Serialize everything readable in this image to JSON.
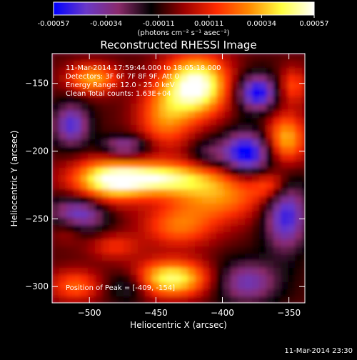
{
  "colorbar": {
    "tick_labels": [
      "-0.00057",
      "-0.00034",
      "-0.00011",
      "0.00011",
      "0.00034",
      "0.00057"
    ],
    "tick_values": [
      -0.00057,
      -0.00034,
      -0.00011,
      0.00011,
      0.00034,
      0.00057
    ],
    "range": [
      -0.00057,
      0.00057
    ],
    "units_label": "(photons cm⁻² s⁻¹ asec⁻²)",
    "colors": [
      "#0000ff",
      "#6a38c8",
      "#8a2a6a",
      "#000000",
      "#9a0000",
      "#ff2a00",
      "#ff8a00",
      "#ffff40",
      "#ffffff"
    ]
  },
  "chart_data": {
    "type": "heatmap",
    "title": "Reconstructed RHESSI Image",
    "xlabel": "Heliocentric X (arcsec)",
    "ylabel": "Heliocentric Y (arcsec)",
    "xlim": [
      -528,
      -338
    ],
    "ylim": [
      -312,
      -128
    ],
    "x_ticks": [
      -500,
      -450,
      -400,
      -350
    ],
    "y_ticks": [
      -300,
      -250,
      -200,
      -150
    ],
    "x_tick_labels": [
      "−500",
      "−450",
      "−400",
      "−350"
    ],
    "y_tick_labels": [
      "−300",
      "−250",
      "−200",
      "−150"
    ],
    "annotations": [
      "11-Mar-2014 17:59:44.000 to 18:05:18.000",
      "Detectors: 3F 6F 7F 8F 9F, Att 0",
      "Energy Range: 12.0 - 25.0 keV",
      "Clean     Total counts: 1.63E+04"
    ],
    "peak_label": "Position of Peak = [-409, -154]",
    "peak_position": [
      -409,
      -154
    ],
    "intensity_range": [
      -0.00057,
      0.00057
    ]
  },
  "footer_timestamp": "11-Mar-2014 23:30"
}
